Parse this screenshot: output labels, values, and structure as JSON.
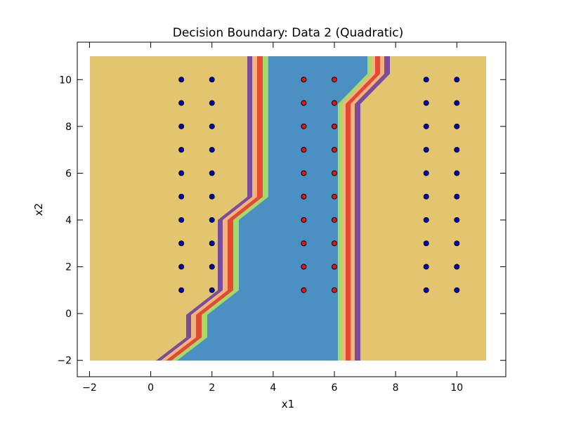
{
  "chart_data": {
    "type": "scatter",
    "title": "Decision Boundary: Data 2 (Quadratic)",
    "x_label": "x1",
    "y_label": "x2",
    "xlim": [
      -2.4,
      11.6
    ],
    "ylim": [
      -2.7,
      11.6
    ],
    "xticks": [
      {
        "value": -2,
        "label": "−2"
      },
      0,
      2,
      4,
      6,
      8,
      10
    ],
    "yticks": [
      {
        "value": -2,
        "label": "−2"
      },
      0,
      2,
      4,
      6,
      8,
      10
    ],
    "series": [
      {
        "color": "#0000cc",
        "x": [
          1,
          1,
          1,
          1,
          1,
          1,
          1,
          1,
          1,
          1,
          2,
          2,
          2,
          2,
          2,
          2,
          2,
          2,
          2,
          2,
          9,
          9,
          9,
          9,
          9,
          9,
          9,
          9,
          9,
          9,
          10,
          10,
          10,
          10,
          10,
          10,
          10,
          10,
          10,
          10
        ],
        "values": [
          1,
          2,
          3,
          4,
          5,
          6,
          7,
          8,
          9,
          10,
          1,
          2,
          3,
          4,
          5,
          6,
          7,
          8,
          9,
          10,
          1,
          2,
          3,
          4,
          5,
          6,
          7,
          8,
          9,
          10,
          1,
          2,
          3,
          4,
          5,
          6,
          7,
          8,
          9,
          10
        ]
      },
      {
        "color": "#ee1111",
        "x": [
          5,
          5,
          5,
          5,
          5,
          5,
          5,
          5,
          5,
          5,
          6,
          6,
          6,
          6,
          6,
          6,
          6,
          6,
          6,
          6
        ],
        "values": [
          1,
          2,
          3,
          4,
          5,
          6,
          7,
          8,
          9,
          10,
          1,
          2,
          3,
          4,
          5,
          6,
          7,
          8,
          9,
          10
        ]
      }
    ]
  }
}
